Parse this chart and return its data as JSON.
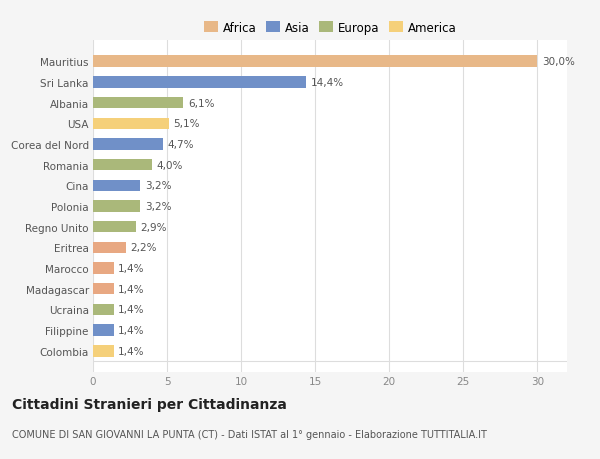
{
  "categories": [
    "Colombia",
    "Filippine",
    "Ucraina",
    "Madagascar",
    "Marocco",
    "Eritrea",
    "Regno Unito",
    "Polonia",
    "Cina",
    "Romania",
    "Corea del Nord",
    "USA",
    "Albania",
    "Sri Lanka",
    "Mauritius"
  ],
  "values": [
    1.4,
    1.4,
    1.4,
    1.4,
    1.4,
    2.2,
    2.9,
    3.2,
    3.2,
    4.0,
    4.7,
    5.1,
    6.1,
    14.4,
    30.0
  ],
  "colors": [
    "#f5d07a",
    "#7090c8",
    "#aab87a",
    "#e8a882",
    "#e8a882",
    "#e8a882",
    "#aab87a",
    "#aab87a",
    "#7090c8",
    "#aab87a",
    "#7090c8",
    "#f5d07a",
    "#aab87a",
    "#7090c8",
    "#e8b888"
  ],
  "labels": [
    "1,4%",
    "1,4%",
    "1,4%",
    "1,4%",
    "1,4%",
    "2,2%",
    "2,9%",
    "3,2%",
    "3,2%",
    "4,0%",
    "4,7%",
    "5,1%",
    "6,1%",
    "14,4%",
    "30,0%"
  ],
  "legend": [
    {
      "label": "Africa",
      "color": "#e8b888"
    },
    {
      "label": "Asia",
      "color": "#7090c8"
    },
    {
      "label": "Europa",
      "color": "#aab87a"
    },
    {
      "label": "America",
      "color": "#f5d07a"
    }
  ],
  "xlim": [
    0,
    32
  ],
  "xticks": [
    0,
    5,
    10,
    15,
    20,
    25,
    30
  ],
  "title": "Cittadini Stranieri per Cittadinanza",
  "subtitle": "COMUNE DI SAN GIOVANNI LA PUNTA (CT) - Dati ISTAT al 1° gennaio - Elaborazione TUTTITALIA.IT",
  "bg_color": "#f5f5f5",
  "bar_bg_color": "#ffffff",
  "grid_color": "#dddddd",
  "label_fontsize": 7.5,
  "tick_fontsize": 7.5,
  "title_fontsize": 10,
  "subtitle_fontsize": 7,
  "legend_fontsize": 8.5,
  "bar_height": 0.55
}
